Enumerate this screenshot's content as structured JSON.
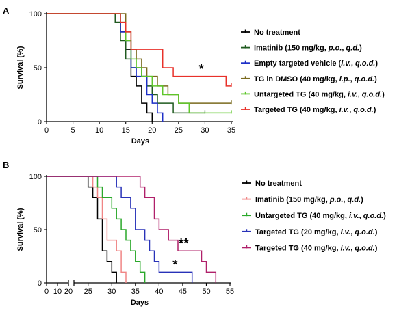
{
  "chart_data": [
    {
      "type": "line",
      "subtype": "kaplan-meier",
      "panel": "A",
      "xlabel": "Days",
      "ylabel": "Survival (%)",
      "xlim": [
        0,
        35
      ],
      "ylim": [
        0,
        100
      ],
      "xticks": [
        "0",
        "5",
        "10",
        "15",
        "20",
        "25",
        "30",
        "35"
      ],
      "yticks": [
        "0",
        "50",
        "100"
      ],
      "legend_position": "right",
      "series": [
        {
          "name": "No treatment",
          "color": "#000000",
          "steps": [
            [
              0,
              100
            ],
            [
              13,
              100
            ],
            [
              13,
              92
            ],
            [
              14,
              92
            ],
            [
              14,
              83
            ],
            [
              15,
              83
            ],
            [
              15,
              67
            ],
            [
              16,
              67
            ],
            [
              16,
              42
            ],
            [
              17,
              42
            ],
            [
              17,
              33
            ],
            [
              18,
              33
            ],
            [
              18,
              17
            ],
            [
              19,
              17
            ],
            [
              19,
              8
            ],
            [
              20,
              8
            ],
            [
              20,
              0
            ]
          ]
        },
        {
          "name": "Imatinib (150 mg/kg, p.o., q.d.)",
          "color": "#1f5a1f",
          "italic": [
            "p.o.",
            "q.d."
          ],
          "steps": [
            [
              0,
              100
            ],
            [
              13,
              100
            ],
            [
              13,
              92
            ],
            [
              14,
              92
            ],
            [
              14,
              75
            ],
            [
              15,
              75
            ],
            [
              15,
              58
            ],
            [
              16,
              58
            ],
            [
              16,
              50
            ],
            [
              18,
              50
            ],
            [
              18,
              42
            ],
            [
              19,
              42
            ],
            [
              19,
              33
            ],
            [
              20,
              33
            ],
            [
              20,
              25
            ],
            [
              21,
              25
            ],
            [
              21,
              17
            ],
            [
              24,
              17
            ],
            [
              24,
              8
            ],
            [
              30,
              8
            ]
          ]
        },
        {
          "name": "Empty targeted vehicle (i.v., q.o.d.)",
          "color": "#1d2fc7",
          "italic": [
            "i.v.",
            "q.o.d."
          ],
          "steps": [
            [
              0,
              100
            ],
            [
              14,
              100
            ],
            [
              14,
              83
            ],
            [
              15,
              83
            ],
            [
              15,
              75
            ],
            [
              16,
              75
            ],
            [
              16,
              50
            ],
            [
              17,
              50
            ],
            [
              17,
              42
            ],
            [
              19,
              42
            ],
            [
              19,
              25
            ],
            [
              20,
              25
            ],
            [
              20,
              17
            ],
            [
              21,
              17
            ],
            [
              21,
              8
            ],
            [
              22,
              8
            ],
            [
              22,
              0
            ]
          ]
        },
        {
          "name": "TG in DMSO (40 mg/kg, i.p., q.o.d.)",
          "color": "#7a6a1e",
          "italic": [
            "i.p.",
            "q.o.d."
          ],
          "steps": [
            [
              0,
              100
            ],
            [
              15,
              100
            ],
            [
              15,
              83
            ],
            [
              16,
              83
            ],
            [
              16,
              67
            ],
            [
              17,
              67
            ],
            [
              17,
              58
            ],
            [
              18,
              58
            ],
            [
              18,
              50
            ],
            [
              19,
              50
            ],
            [
              19,
              42
            ],
            [
              21,
              42
            ],
            [
              21,
              33
            ],
            [
              23,
              33
            ],
            [
              23,
              25
            ],
            [
              25,
              25
            ],
            [
              25,
              17
            ],
            [
              35,
              17
            ]
          ]
        },
        {
          "name": "Untargeted TG (40 mg/kg, i.v., q.o.d.)",
          "color": "#5ec62a",
          "italic": [
            "i.v.",
            "q.o.d."
          ],
          "steps": [
            [
              0,
              100
            ],
            [
              14,
              100
            ],
            [
              14,
              92
            ],
            [
              15,
              92
            ],
            [
              15,
              75
            ],
            [
              16,
              75
            ],
            [
              16,
              58
            ],
            [
              17,
              58
            ],
            [
              17,
              50
            ],
            [
              18,
              50
            ],
            [
              18,
              42
            ],
            [
              20,
              42
            ],
            [
              20,
              33
            ],
            [
              22,
              33
            ],
            [
              22,
              25
            ],
            [
              25,
              25
            ],
            [
              25,
              17
            ],
            [
              27,
              17
            ],
            [
              27,
              8
            ],
            [
              35,
              8
            ]
          ]
        },
        {
          "name": "Targeted TG (40 mg/kg, i.v., q.o.d.)",
          "color": "#e8312a",
          "italic": [
            "i.v.",
            "q.o.d."
          ],
          "steps": [
            [
              0,
              100
            ],
            [
              14,
              100
            ],
            [
              14,
              92
            ],
            [
              15,
              92
            ],
            [
              15,
              83
            ],
            [
              16,
              83
            ],
            [
              16,
              67
            ],
            [
              22,
              67
            ],
            [
              22,
              50
            ],
            [
              24,
              50
            ],
            [
              24,
              42
            ],
            [
              34,
              42
            ],
            [
              34,
              33
            ],
            [
              35,
              33
            ]
          ]
        }
      ],
      "annotations": [
        {
          "text": "*",
          "x": 29.3,
          "y": 45
        }
      ]
    },
    {
      "type": "line",
      "subtype": "kaplan-meier",
      "panel": "B",
      "xlabel": "Days",
      "ylabel": "Survival (%)",
      "xlim": [
        0,
        55
      ],
      "axis_break": [
        20,
        22
      ],
      "ylim": [
        0,
        100
      ],
      "xticks": [
        "0",
        "10",
        "20",
        "25",
        "30",
        "35",
        "40",
        "45",
        "50",
        "55"
      ],
      "yticks": [
        "0",
        "50",
        "100"
      ],
      "legend_position": "right",
      "series": [
        {
          "name": "No treatment",
          "color": "#000000",
          "steps": [
            [
              0,
              100
            ],
            [
              25,
              100
            ],
            [
              25,
              90
            ],
            [
              26,
              90
            ],
            [
              26,
              80
            ],
            [
              27,
              80
            ],
            [
              27,
              60
            ],
            [
              28,
              60
            ],
            [
              28,
              30
            ],
            [
              29,
              30
            ],
            [
              29,
              20
            ],
            [
              30,
              20
            ],
            [
              30,
              10
            ],
            [
              31,
              10
            ],
            [
              31,
              0
            ]
          ]
        },
        {
          "name": "Imatinib (150 mg/kg, p.o., q.d.)",
          "color": "#f08585",
          "italic": [
            "p.o.",
            "q.d."
          ],
          "steps": [
            [
              0,
              100
            ],
            [
              26,
              100
            ],
            [
              26,
              90
            ],
            [
              27,
              90
            ],
            [
              27,
              80
            ],
            [
              28,
              80
            ],
            [
              28,
              60
            ],
            [
              29,
              60
            ],
            [
              29,
              40
            ],
            [
              31,
              40
            ],
            [
              31,
              30
            ],
            [
              32,
              30
            ],
            [
              32,
              10
            ],
            [
              33,
              10
            ],
            [
              33,
              0
            ]
          ]
        },
        {
          "name": "Untargeted TG (40 mg/kg, i.v., q.o.d.)",
          "color": "#2aa82a",
          "italic": [
            "i.v.",
            "q.o.d."
          ],
          "steps": [
            [
              0,
              100
            ],
            [
              27,
              100
            ],
            [
              27,
              90
            ],
            [
              28,
              90
            ],
            [
              28,
              80
            ],
            [
              30,
              80
            ],
            [
              30,
              70
            ],
            [
              31,
              70
            ],
            [
              31,
              60
            ],
            [
              32,
              60
            ],
            [
              32,
              50
            ],
            [
              33,
              50
            ],
            [
              33,
              40
            ],
            [
              34,
              40
            ],
            [
              34,
              30
            ],
            [
              35,
              30
            ],
            [
              35,
              20
            ],
            [
              36,
              20
            ],
            [
              36,
              10
            ],
            [
              37,
              10
            ],
            [
              37,
              0
            ]
          ]
        },
        {
          "name": "Targeted TG (20 mg/kg, i.v., q.o.d.)",
          "color": "#2832b8",
          "italic": [
            "i.v.",
            "q.o.d."
          ],
          "steps": [
            [
              0,
              100
            ],
            [
              31,
              100
            ],
            [
              31,
              90
            ],
            [
              32,
              90
            ],
            [
              32,
              80
            ],
            [
              34,
              80
            ],
            [
              34,
              70
            ],
            [
              35,
              70
            ],
            [
              35,
              50
            ],
            [
              37,
              50
            ],
            [
              37,
              40
            ],
            [
              38,
              40
            ],
            [
              38,
              30
            ],
            [
              39,
              30
            ],
            [
              39,
              20
            ],
            [
              40,
              20
            ],
            [
              40,
              10
            ],
            [
              47,
              10
            ],
            [
              47,
              0
            ]
          ]
        },
        {
          "name": "Targeted TG (40 mg/kg, i.v., q.o.d.)",
          "color": "#b0206a",
          "italic": [
            "i.v.",
            "q.o.d."
          ],
          "steps": [
            [
              0,
              100
            ],
            [
              36,
              100
            ],
            [
              36,
              90
            ],
            [
              37,
              90
            ],
            [
              37,
              80
            ],
            [
              39,
              80
            ],
            [
              39,
              60
            ],
            [
              40,
              60
            ],
            [
              40,
              50
            ],
            [
              42,
              50
            ],
            [
              42,
              40
            ],
            [
              44,
              40
            ],
            [
              44,
              30
            ],
            [
              49,
              30
            ],
            [
              49,
              20
            ],
            [
              50,
              20
            ],
            [
              50,
              10
            ],
            [
              52,
              10
            ],
            [
              52,
              0
            ]
          ]
        }
      ],
      "annotations": [
        {
          "text": "**",
          "x": 45.2,
          "y": 33
        },
        {
          "text": "*",
          "x": 43.4,
          "y": 13
        }
      ]
    }
  ]
}
